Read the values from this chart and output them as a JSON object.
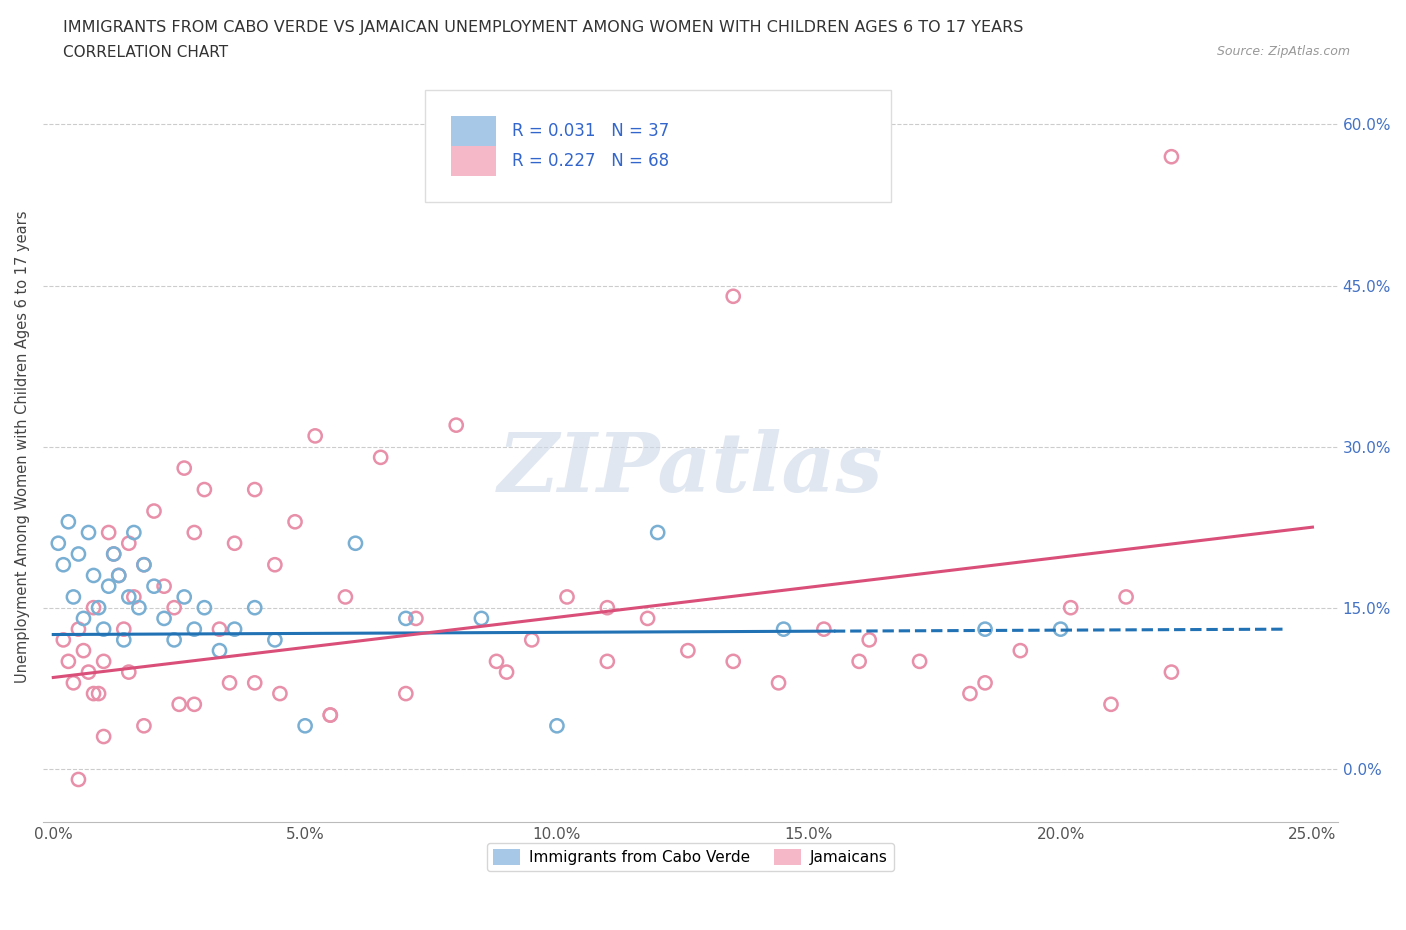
{
  "title": "IMMIGRANTS FROM CABO VERDE VS JAMAICAN UNEMPLOYMENT AMONG WOMEN WITH CHILDREN AGES 6 TO 17 YEARS",
  "subtitle": "CORRELATION CHART",
  "source": "Source: ZipAtlas.com",
  "ylabel": "Unemployment Among Women with Children Ages 6 to 17 years",
  "xlim": [
    -0.002,
    0.255
  ],
  "ylim": [
    -0.05,
    0.65
  ],
  "xticks": [
    0.0,
    0.05,
    0.1,
    0.15,
    0.2,
    0.25
  ],
  "yticks": [
    0.0,
    0.15,
    0.3,
    0.45,
    0.6
  ],
  "ytick_labels": [
    "0.0%",
    "15.0%",
    "30.0%",
    "45.0%",
    "60.0%"
  ],
  "xtick_labels": [
    "0.0%",
    "5.0%",
    "10.0%",
    "15.0%",
    "20.0%",
    "25.0%"
  ],
  "cabo_verde_color": "#a8c8e8",
  "jamaican_color": "#f4b8c8",
  "cabo_verde_edge_color": "#7aafd4",
  "jamaican_edge_color": "#e890aa",
  "cabo_verde_line_color": "#2171b5",
  "jamaican_line_color": "#d94f7a",
  "cabo_verde_R": 0.031,
  "cabo_verde_N": 37,
  "jamaican_R": 0.227,
  "jamaican_N": 68,
  "watermark": "ZIPatlas",
  "watermark_color": "#ccd8e8",
  "legend_label_cabo": "Immigrants from Cabo Verde",
  "legend_label_jamaican": "Jamaicans",
  "cabo_verde_line_x_solid_end": 0.155,
  "cabo_verde_line_x_dash_end": 0.245,
  "cabo_verde_line_y_start": 0.125,
  "cabo_verde_line_y_end": 0.13,
  "jamaican_line_y_start": 0.085,
  "jamaican_line_y_end": 0.225,
  "cabo_verde_x": [
    0.001,
    0.002,
    0.003,
    0.004,
    0.005,
    0.006,
    0.007,
    0.008,
    0.009,
    0.01,
    0.011,
    0.012,
    0.013,
    0.014,
    0.015,
    0.016,
    0.017,
    0.018,
    0.02,
    0.022,
    0.024,
    0.026,
    0.028,
    0.03,
    0.033,
    0.036,
    0.04,
    0.044,
    0.05,
    0.06,
    0.07,
    0.085,
    0.1,
    0.12,
    0.145,
    0.185,
    0.2
  ],
  "cabo_verde_y": [
    0.21,
    0.19,
    0.23,
    0.16,
    0.2,
    0.14,
    0.22,
    0.18,
    0.15,
    0.13,
    0.17,
    0.2,
    0.18,
    0.12,
    0.16,
    0.22,
    0.15,
    0.19,
    0.17,
    0.14,
    0.12,
    0.16,
    0.13,
    0.15,
    0.11,
    0.13,
    0.15,
    0.12,
    0.04,
    0.21,
    0.14,
    0.14,
    0.04,
    0.22,
    0.13,
    0.13,
    0.13
  ],
  "jamaican_x": [
    0.002,
    0.003,
    0.004,
    0.005,
    0.006,
    0.007,
    0.008,
    0.009,
    0.01,
    0.011,
    0.012,
    0.013,
    0.014,
    0.015,
    0.016,
    0.018,
    0.02,
    0.022,
    0.024,
    0.026,
    0.028,
    0.03,
    0.033,
    0.036,
    0.04,
    0.044,
    0.048,
    0.052,
    0.058,
    0.065,
    0.072,
    0.08,
    0.088,
    0.095,
    0.102,
    0.11,
    0.118,
    0.126,
    0.135,
    0.144,
    0.153,
    0.162,
    0.172,
    0.182,
    0.192,
    0.202,
    0.213,
    0.222,
    0.008,
    0.015,
    0.025,
    0.035,
    0.045,
    0.055,
    0.005,
    0.01,
    0.018,
    0.028,
    0.04,
    0.055,
    0.07,
    0.09,
    0.11,
    0.135,
    0.16,
    0.185,
    0.21,
    0.222
  ],
  "jamaican_y": [
    0.12,
    0.1,
    0.08,
    0.13,
    0.11,
    0.09,
    0.15,
    0.07,
    0.1,
    0.22,
    0.2,
    0.18,
    0.13,
    0.21,
    0.16,
    0.19,
    0.24,
    0.17,
    0.15,
    0.28,
    0.22,
    0.26,
    0.13,
    0.21,
    0.26,
    0.19,
    0.23,
    0.31,
    0.16,
    0.29,
    0.14,
    0.32,
    0.1,
    0.12,
    0.16,
    0.15,
    0.14,
    0.11,
    0.1,
    0.08,
    0.13,
    0.12,
    0.1,
    0.07,
    0.11,
    0.15,
    0.16,
    0.57,
    0.07,
    0.09,
    0.06,
    0.08,
    0.07,
    0.05,
    -0.01,
    0.03,
    0.04,
    0.06,
    0.08,
    0.05,
    0.07,
    0.09,
    0.1,
    0.44,
    0.1,
    0.08,
    0.06,
    0.09
  ]
}
